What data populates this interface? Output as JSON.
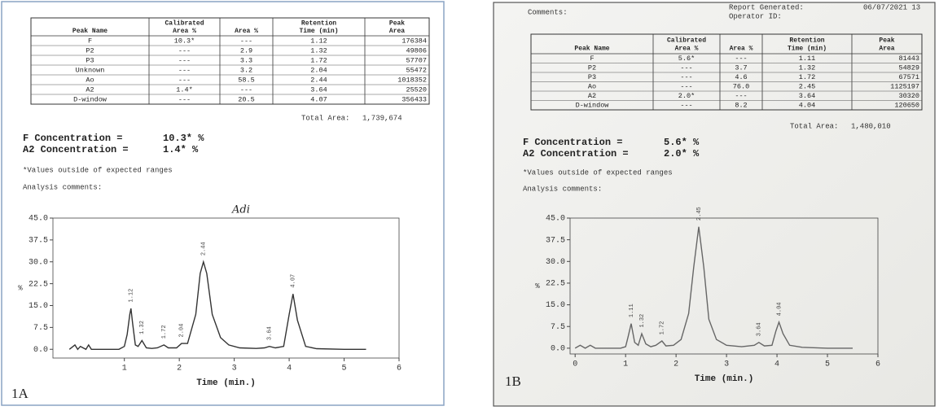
{
  "panels": [
    {
      "label": "1A",
      "table": {
        "columns": [
          [
            "Peak Name"
          ],
          [
            "Calibrated",
            "Area %"
          ],
          [
            "Area %"
          ],
          [
            "Retention",
            "Time (min)"
          ],
          [
            "Peak",
            "Area"
          ]
        ],
        "rows": [
          [
            "F",
            "10.3*",
            "---",
            "1.12",
            "176384"
          ],
          [
            "P2",
            "---",
            "2.9",
            "1.32",
            "49806"
          ],
          [
            "P3",
            "---",
            "3.3",
            "1.72",
            "57707"
          ],
          [
            "Unknown",
            "---",
            "3.2",
            "2.04",
            "55472"
          ],
          [
            "Ao",
            "---",
            "58.5",
            "2.44",
            "1018352"
          ],
          [
            "A2",
            "1.4*",
            "---",
            "3.64",
            "25520"
          ],
          [
            "D-window",
            "---",
            "20.5",
            "4.07",
            "356433"
          ]
        ]
      },
      "total_area": {
        "label": "Total Area:",
        "value": "1,739,674"
      },
      "concentrations": [
        {
          "label": "F Concentration =",
          "value": "10.3* %"
        },
        {
          "label": "A2 Concentration =",
          "value": "1.4* %"
        }
      ],
      "footnote": "*Values outside of expected ranges",
      "comments_label": "Analysis comments:",
      "annotation": "Adi",
      "chromatogram": {
        "type": "line",
        "x_label": "Time (min.)",
        "y_label": "%",
        "xlim": [
          -0.3,
          6
        ],
        "ylim": [
          -3,
          45
        ],
        "xticks": [
          1,
          2,
          3,
          4,
          5,
          6
        ],
        "yticks": [
          {
            "value": 0,
            "label": "0.0"
          },
          {
            "value": 7.5,
            "label": "7.5"
          },
          {
            "value": 15,
            "label": "15.0"
          },
          {
            "value": 22.5,
            "label": "22.5"
          },
          {
            "value": 30,
            "label": "30.0"
          },
          {
            "value": 37.5,
            "label": "37.5"
          },
          {
            "value": 45,
            "label": "45.0"
          }
        ],
        "peak_labels": [
          {
            "x": 1.12,
            "label": "1.12"
          },
          {
            "x": 1.32,
            "label": "1.32"
          },
          {
            "x": 1.72,
            "label": "1.72"
          },
          {
            "x": 2.04,
            "label": "2.04"
          },
          {
            "x": 2.44,
            "label": "2.44"
          },
          {
            "x": 3.64,
            "label": "3.64"
          },
          {
            "x": 4.07,
            "label": "4.07"
          }
        ],
        "color": "#333333",
        "x": [
          0,
          0.1,
          0.15,
          0.2,
          0.3,
          0.35,
          0.4,
          0.6,
          0.9,
          1.0,
          1.05,
          1.1,
          1.12,
          1.15,
          1.2,
          1.25,
          1.32,
          1.4,
          1.5,
          1.6,
          1.72,
          1.8,
          1.95,
          2.04,
          2.15,
          2.3,
          2.38,
          2.44,
          2.5,
          2.6,
          2.75,
          2.9,
          3.1,
          3.4,
          3.55,
          3.64,
          3.75,
          3.9,
          4.0,
          4.07,
          4.15,
          4.3,
          4.5,
          5.0,
          5.4
        ],
        "y": [
          0,
          1.5,
          0,
          1,
          0,
          1.5,
          0,
          0,
          0,
          1,
          5,
          12,
          14,
          9,
          1.5,
          1,
          3,
          0.5,
          0.3,
          0.5,
          1.5,
          0.5,
          0.5,
          2,
          2,
          12,
          26,
          30,
          26,
          12,
          4,
          1.5,
          0.5,
          0.3,
          0.5,
          1,
          0.5,
          1,
          12,
          19,
          10,
          1,
          0.2,
          0,
          0
        ]
      }
    },
    {
      "label": "1B",
      "header": [
        {
          "label": "Comments:"
        },
        {
          "label": "Report Generated:",
          "value": "06/07/2021 13"
        },
        {
          "label": "Operator ID:"
        }
      ],
      "table": {
        "columns": [
          [
            "Peak Name"
          ],
          [
            "Calibrated",
            "Area %"
          ],
          [
            "Area %"
          ],
          [
            "Retention",
            "Time (min)"
          ],
          [
            "Peak",
            "Area"
          ]
        ],
        "rows": [
          [
            "F",
            "5.6*",
            "---",
            "1.11",
            "81443"
          ],
          [
            "P2",
            "---",
            "3.7",
            "1.32",
            "54829"
          ],
          [
            "P3",
            "---",
            "4.6",
            "1.72",
            "67571"
          ],
          [
            "Ao",
            "---",
            "76.0",
            "2.45",
            "1125197"
          ],
          [
            "A2",
            "2.0*",
            "---",
            "3.64",
            "30320"
          ],
          [
            "D-window",
            "---",
            "8.2",
            "4.04",
            "120650"
          ]
        ]
      },
      "total_area": {
        "label": "Total Area:",
        "value": "1,480,010"
      },
      "concentrations": [
        {
          "label": "F Concentration =",
          "value": "5.6* %"
        },
        {
          "label": "A2 Concentration =",
          "value": "2.0* %"
        }
      ],
      "footnote": "*Values outside of expected ranges",
      "comments_label": "Analysis comments:",
      "chromatogram": {
        "type": "line",
        "x_label": "Time (min.)",
        "y_label": "%",
        "xlim": [
          -0.1,
          6
        ],
        "ylim": [
          -2,
          45
        ],
        "xticks": [
          0,
          1,
          2,
          3,
          4,
          5,
          6
        ],
        "yticks": [
          {
            "value": 0,
            "label": "0.0"
          },
          {
            "value": 7.5,
            "label": "7.5"
          },
          {
            "value": 15,
            "label": "15.0"
          },
          {
            "value": 22.5,
            "label": "22.5"
          },
          {
            "value": 30,
            "label": "30.0"
          },
          {
            "value": 37.5,
            "label": "37.5"
          },
          {
            "value": 45,
            "label": "45.0"
          }
        ],
        "peak_labels": [
          {
            "x": 1.11,
            "label": "1.11"
          },
          {
            "x": 1.32,
            "label": "1.32"
          },
          {
            "x": 1.72,
            "label": "1.72"
          },
          {
            "x": 2.45,
            "label": "2.45"
          },
          {
            "x": 3.64,
            "label": "3.64"
          },
          {
            "x": 4.04,
            "label": "4.04"
          }
        ],
        "color": "#666666",
        "x": [
          0,
          0.1,
          0.2,
          0.3,
          0.4,
          0.6,
          0.9,
          1.0,
          1.05,
          1.11,
          1.18,
          1.25,
          1.32,
          1.4,
          1.5,
          1.6,
          1.72,
          1.8,
          1.95,
          2.1,
          2.25,
          2.35,
          2.45,
          2.55,
          2.65,
          2.8,
          3.0,
          3.3,
          3.55,
          3.64,
          3.75,
          3.9,
          3.98,
          4.04,
          4.12,
          4.25,
          4.5,
          5.0,
          5.5
        ],
        "y": [
          0,
          1,
          0,
          1,
          0,
          0,
          0,
          0.5,
          4,
          8.5,
          2,
          1,
          5,
          1.5,
          0.5,
          1,
          2.5,
          0.8,
          1,
          3,
          12,
          28,
          42,
          28,
          10,
          3,
          1,
          0.5,
          1,
          2,
          0.8,
          1,
          6,
          9,
          5,
          1,
          0.3,
          0,
          0
        ]
      }
    }
  ]
}
